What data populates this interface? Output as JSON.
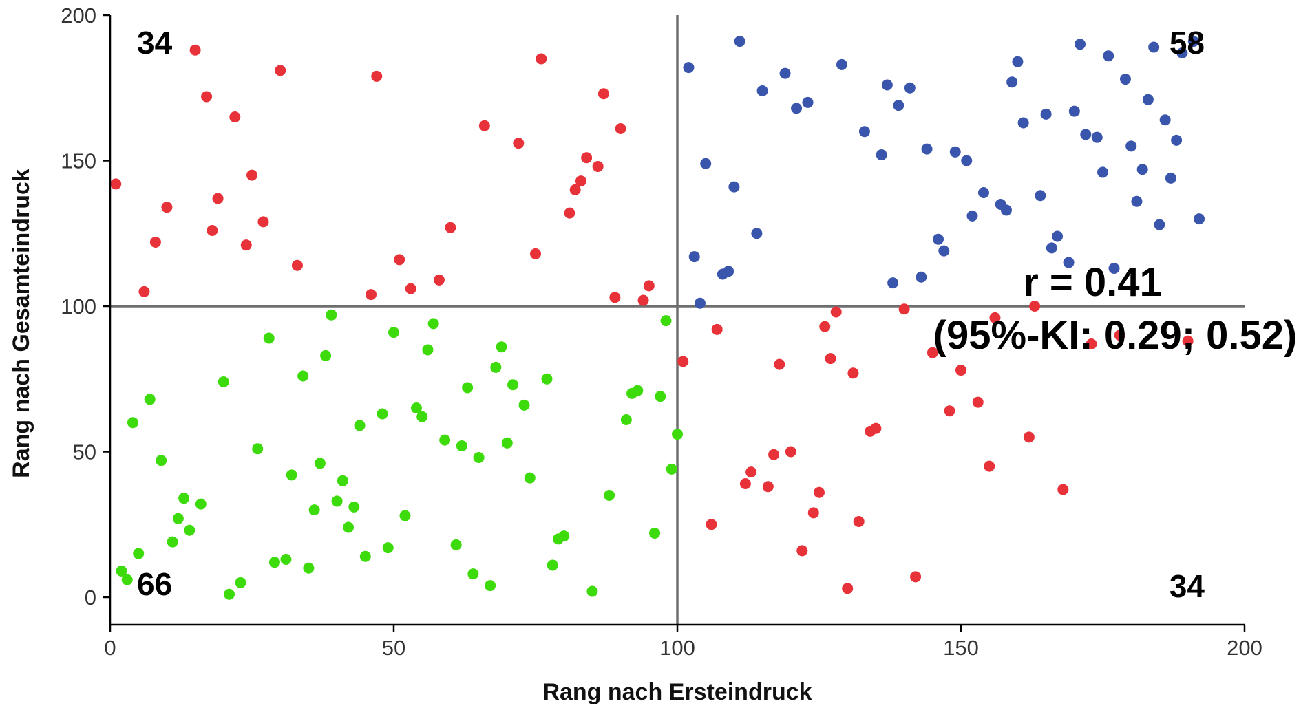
{
  "chart_data": {
    "type": "scatter",
    "xlabel": "Rang nach Ersteindruck",
    "ylabel": "Rang nach Gesamteindruck",
    "xlim": [
      0,
      200
    ],
    "ylim": [
      -10,
      200
    ],
    "x_ticks": [
      "0",
      "50",
      "100",
      "150",
      "200"
    ],
    "y_ticks": [
      "0",
      "50",
      "100",
      "150",
      "200"
    ],
    "reference_lines": {
      "x": 100,
      "y": 100
    },
    "grid": false,
    "colors": {
      "discordant": "#e8323a",
      "high_high": "#3a56ac",
      "low_low": "#3ddb0c",
      "reference": "#6e6e6e"
    },
    "quadrant_counts": {
      "top_left": "34",
      "top_right": "58",
      "bottom_left": "66",
      "bottom_right": "34"
    },
    "annotation": {
      "line1": "r = 0.41",
      "line2": "(95%-KI: 0.29; 0.52)"
    },
    "series": [
      {
        "group": "top-left",
        "color": "#e8323a",
        "points": [
          [
            1,
            142
          ],
          [
            6,
            105
          ],
          [
            8,
            122
          ],
          [
            10,
            134
          ],
          [
            15,
            188
          ],
          [
            17,
            172
          ],
          [
            18,
            126
          ],
          [
            19,
            137
          ],
          [
            22,
            165
          ],
          [
            24,
            121
          ],
          [
            25,
            145
          ],
          [
            27,
            129
          ],
          [
            30,
            181
          ],
          [
            33,
            114
          ],
          [
            46,
            104
          ],
          [
            47,
            179
          ],
          [
            51,
            116
          ],
          [
            53,
            106
          ],
          [
            58,
            109
          ],
          [
            60,
            127
          ],
          [
            66,
            162
          ],
          [
            72,
            156
          ],
          [
            75,
            118
          ],
          [
            76,
            185
          ],
          [
            81,
            132
          ],
          [
            82,
            140
          ],
          [
            83,
            143
          ],
          [
            84,
            151
          ],
          [
            86,
            148
          ],
          [
            87,
            173
          ],
          [
            89,
            103
          ],
          [
            90,
            161
          ],
          [
            94,
            102
          ],
          [
            95,
            107
          ]
        ]
      },
      {
        "group": "top-right",
        "color": "#3a56ac",
        "points": [
          [
            102,
            182
          ],
          [
            103,
            117
          ],
          [
            104,
            101
          ],
          [
            105,
            149
          ],
          [
            108,
            111
          ],
          [
            109,
            112
          ],
          [
            110,
            141
          ],
          [
            111,
            191
          ],
          [
            114,
            125
          ],
          [
            115,
            174
          ],
          [
            119,
            180
          ],
          [
            121,
            168
          ],
          [
            123,
            170
          ],
          [
            129,
            183
          ],
          [
            133,
            160
          ],
          [
            136,
            152
          ],
          [
            137,
            176
          ],
          [
            138,
            108
          ],
          [
            139,
            169
          ],
          [
            141,
            175
          ],
          [
            143,
            110
          ],
          [
            144,
            154
          ],
          [
            146,
            123
          ],
          [
            147,
            119
          ],
          [
            149,
            153
          ],
          [
            151,
            150
          ],
          [
            152,
            131
          ],
          [
            154,
            139
          ],
          [
            157,
            135
          ],
          [
            158,
            133
          ],
          [
            159,
            177
          ],
          [
            160,
            184
          ],
          [
            161,
            163
          ],
          [
            164,
            138
          ],
          [
            165,
            166
          ],
          [
            166,
            120
          ],
          [
            167,
            124
          ],
          [
            169,
            115
          ],
          [
            170,
            167
          ],
          [
            171,
            190
          ],
          [
            172,
            159
          ],
          [
            174,
            158
          ],
          [
            175,
            146
          ],
          [
            176,
            186
          ],
          [
            177,
            113
          ],
          [
            179,
            178
          ],
          [
            180,
            155
          ],
          [
            181,
            136
          ],
          [
            182,
            147
          ],
          [
            183,
            171
          ],
          [
            184,
            189
          ],
          [
            185,
            128
          ],
          [
            186,
            164
          ],
          [
            187,
            144
          ],
          [
            188,
            157
          ],
          [
            189,
            187
          ],
          [
            191,
            191
          ],
          [
            192,
            130
          ]
        ]
      },
      {
        "group": "bottom-left",
        "color": "#3ddb0c",
        "points": [
          [
            2,
            9
          ],
          [
            3,
            6
          ],
          [
            4,
            60
          ],
          [
            5,
            15
          ],
          [
            7,
            68
          ],
          [
            9,
            47
          ],
          [
            11,
            19
          ],
          [
            12,
            27
          ],
          [
            13,
            34
          ],
          [
            14,
            23
          ],
          [
            16,
            32
          ],
          [
            20,
            74
          ],
          [
            21,
            1
          ],
          [
            23,
            5
          ],
          [
            26,
            51
          ],
          [
            28,
            89
          ],
          [
            29,
            12
          ],
          [
            31,
            13
          ],
          [
            32,
            42
          ],
          [
            34,
            76
          ],
          [
            35,
            10
          ],
          [
            36,
            30
          ],
          [
            37,
            46
          ],
          [
            38,
            83
          ],
          [
            39,
            97
          ],
          [
            40,
            33
          ],
          [
            41,
            40
          ],
          [
            42,
            24
          ],
          [
            43,
            31
          ],
          [
            44,
            59
          ],
          [
            45,
            14
          ],
          [
            48,
            63
          ],
          [
            49,
            17
          ],
          [
            50,
            91
          ],
          [
            52,
            28
          ],
          [
            54,
            65
          ],
          [
            55,
            62
          ],
          [
            56,
            85
          ],
          [
            57,
            94
          ],
          [
            59,
            54
          ],
          [
            61,
            18
          ],
          [
            62,
            52
          ],
          [
            63,
            72
          ],
          [
            64,
            8
          ],
          [
            65,
            48
          ],
          [
            67,
            4
          ],
          [
            68,
            79
          ],
          [
            69,
            86
          ],
          [
            70,
            53
          ],
          [
            71,
            73
          ],
          [
            73,
            66
          ],
          [
            74,
            41
          ],
          [
            77,
            75
          ],
          [
            78,
            11
          ],
          [
            79,
            20
          ],
          [
            80,
            21
          ],
          [
            85,
            2
          ],
          [
            88,
            35
          ],
          [
            91,
            61
          ],
          [
            92,
            70
          ],
          [
            93,
            71
          ],
          [
            96,
            22
          ],
          [
            97,
            69
          ],
          [
            98,
            95
          ],
          [
            99,
            44
          ],
          [
            100,
            56
          ]
        ]
      },
      {
        "group": "bottom-right",
        "color": "#e8323a",
        "points": [
          [
            101,
            81
          ],
          [
            106,
            25
          ],
          [
            107,
            92
          ],
          [
            112,
            39
          ],
          [
            113,
            43
          ],
          [
            116,
            38
          ],
          [
            117,
            49
          ],
          [
            118,
            80
          ],
          [
            120,
            50
          ],
          [
            122,
            16
          ],
          [
            124,
            29
          ],
          [
            125,
            36
          ],
          [
            126,
            93
          ],
          [
            127,
            82
          ],
          [
            128,
            98
          ],
          [
            130,
            3
          ],
          [
            131,
            77
          ],
          [
            132,
            26
          ],
          [
            134,
            57
          ],
          [
            135,
            58
          ],
          [
            140,
            99
          ],
          [
            142,
            7
          ],
          [
            145,
            84
          ],
          [
            148,
            64
          ],
          [
            150,
            78
          ],
          [
            153,
            67
          ],
          [
            155,
            45
          ],
          [
            156,
            96
          ],
          [
            162,
            55
          ],
          [
            163,
            100
          ],
          [
            168,
            37
          ],
          [
            173,
            87
          ],
          [
            178,
            90
          ],
          [
            190,
            88
          ]
        ]
      }
    ]
  }
}
